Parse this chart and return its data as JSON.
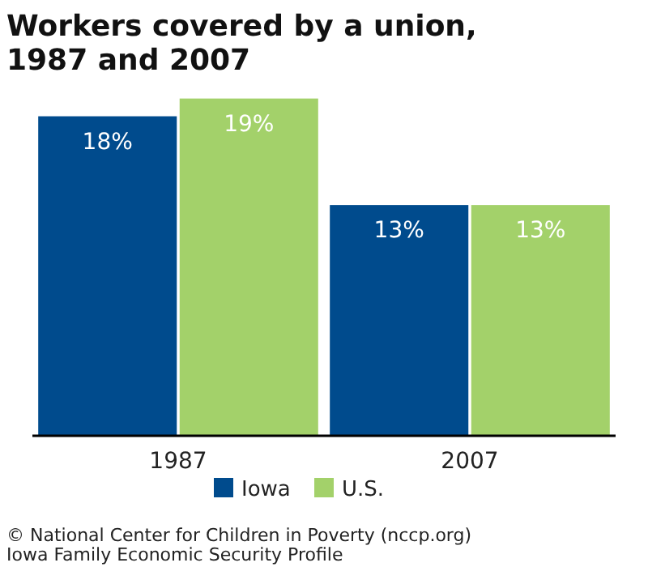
{
  "chart_data": {
    "type": "bar",
    "title": "Workers covered by a union, 1987 and 2007",
    "categories": [
      "1987",
      "2007"
    ],
    "series": [
      {
        "name": "Iowa",
        "color": "#004b8d",
        "values": [
          18,
          13
        ],
        "value_labels": [
          "18%",
          "13%"
        ]
      },
      {
        "name": "U.S.",
        "color": "#a3d16a",
        "values": [
          19,
          13
        ],
        "value_labels": [
          "19%",
          "13%"
        ]
      }
    ],
    "legend": "bottom",
    "annotations": [
      "© National Center for Children in Poverty (nccp.org)",
      "Iowa Family Economic Security Profile"
    ]
  }
}
